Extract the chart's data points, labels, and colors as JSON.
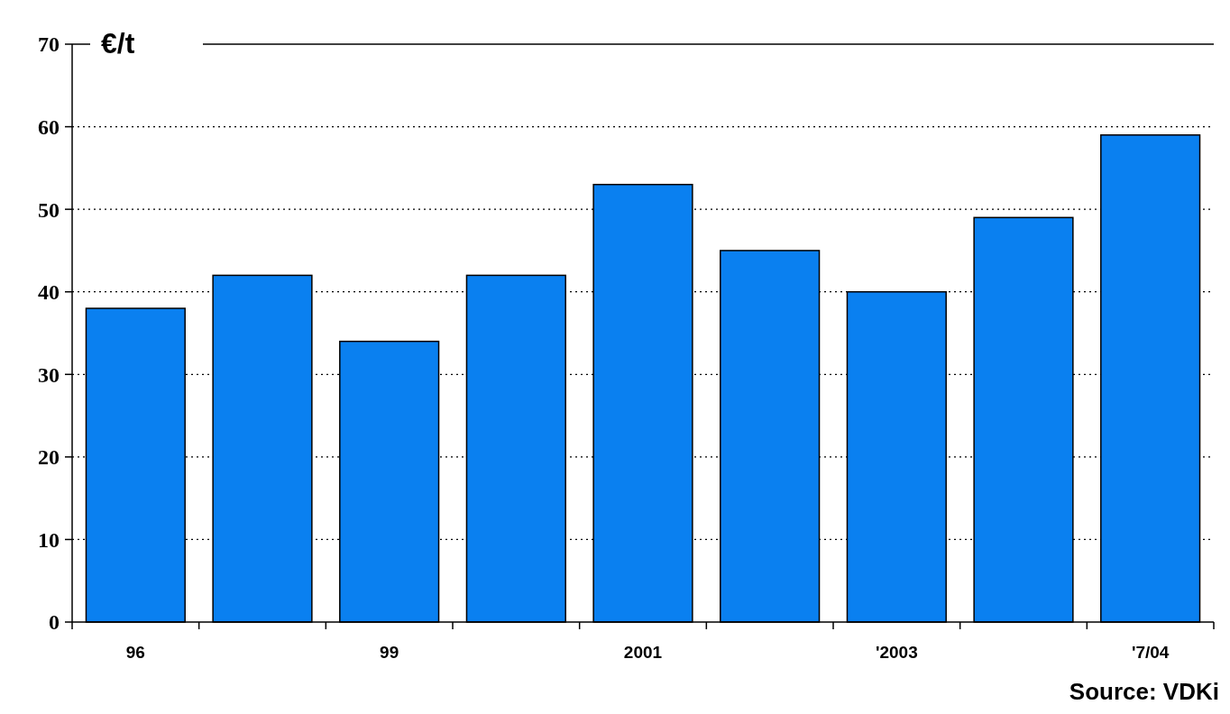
{
  "chart_data": {
    "type": "bar",
    "ylabel": "€/t",
    "categories": [
      "96",
      null,
      "99",
      null,
      "2001",
      null,
      "'2003",
      null,
      "'7/04"
    ],
    "values": [
      38,
      42,
      34,
      42,
      53,
      45,
      40,
      49,
      59
    ],
    "color": "#0a80f0",
    "ylim": [
      0,
      70
    ],
    "yticks": [
      0,
      10,
      20,
      30,
      40,
      50,
      60,
      70
    ],
    "grid": "y",
    "annotations": [
      "Source: VDKi"
    ]
  }
}
